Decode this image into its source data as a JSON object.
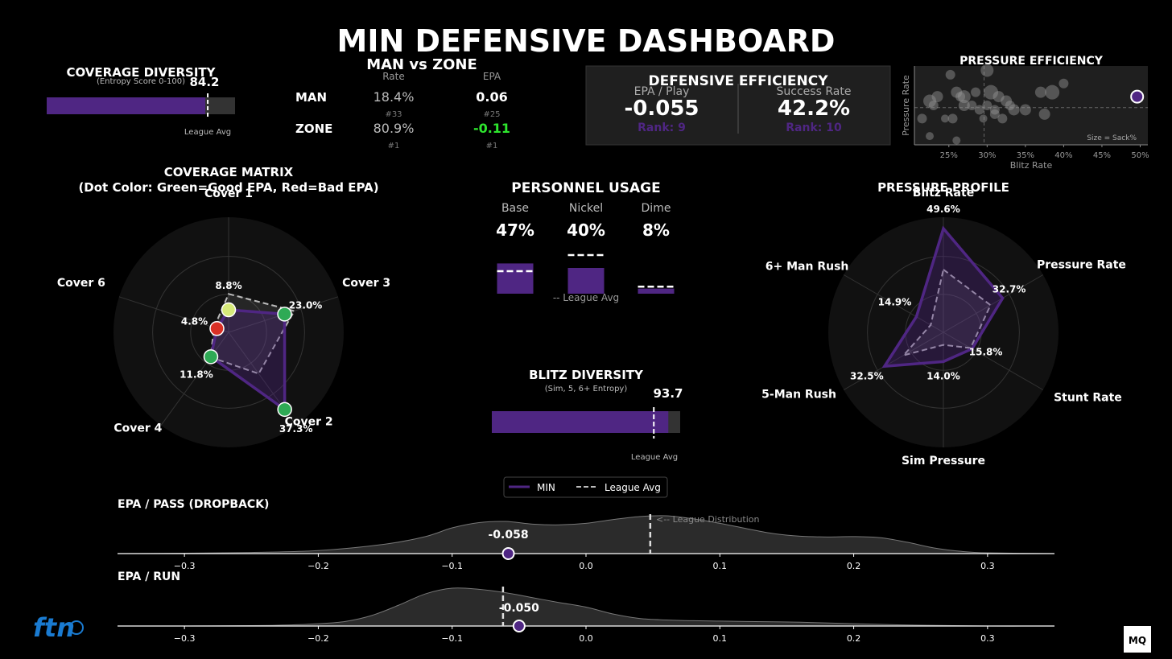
{
  "title": "MIN DEFENSIVE DASHBOARD",
  "coverage_diversity": {
    "title": "COVERAGE DIVERSITY",
    "subtitle": "(Entropy Score 0-100)",
    "value_label": "84.2",
    "value": 84.2,
    "league_avg": 85.5,
    "league_label": "League Avg"
  },
  "man_zone": {
    "title": "MAN vs ZONE",
    "col_rate": "Rate",
    "col_epa": "EPA",
    "rows": [
      {
        "label": "MAN",
        "rate": "18.4%",
        "rate_rank": "#33",
        "epa": "0.06",
        "epa_rank": "#25"
      },
      {
        "label": "ZONE",
        "rate": "80.9%",
        "rate_rank": "#1",
        "epa": "-0.11",
        "epa_rank": "#1"
      }
    ]
  },
  "defensive_efficiency": {
    "title": "DEFENSIVE EFFICIENCY",
    "epa_label": "EPA / Play",
    "epa_value": "-0.055",
    "epa_rank": "Rank: 9",
    "sr_label": "Success Rate",
    "sr_value": "42.2%",
    "sr_rank": "Rank: 10"
  },
  "coverage_matrix": {
    "title_line1": "COVERAGE MATRIX",
    "title_line2": "(Dot Color: Green=Good EPA, Red=Bad EPA)"
  },
  "personnel": {
    "title": "PERSONNEL USAGE",
    "legend": "-- League Avg",
    "items": [
      {
        "label": "Base",
        "value_label": "47%",
        "value": 47,
        "league": 35
      },
      {
        "label": "Nickel",
        "value_label": "40%",
        "value": 40,
        "league": 60
      },
      {
        "label": "Dime",
        "value_label": "8%",
        "value": 8,
        "league": 11
      }
    ]
  },
  "blitz_diversity": {
    "title": "BLITZ DIVERSITY",
    "subtitle": "(Sim, 5, 6+ Entropy)",
    "value_label": "93.7",
    "value": 93.7,
    "league_avg": 86,
    "league_label": "League Avg"
  },
  "pressure_profile": {
    "title": "PRESSURE PROFILE"
  },
  "legend": {
    "team": "MIN",
    "league": "League Avg"
  },
  "epa_pass": {
    "title": "EPA / PASS (DROPBACK)",
    "value_label": "-0.058",
    "value": -0.058,
    "league_mean": 0.048,
    "dist_label": "<-- League Distribution"
  },
  "epa_run": {
    "title": "EPA / RUN",
    "value_label": "-0.050",
    "value": -0.05,
    "league_mean": -0.062
  },
  "logos": {
    "left": "ftn",
    "right": "MQ"
  },
  "chart_data": [
    {
      "type": "radar",
      "name": "coverage_matrix",
      "axes": [
        "Cover 1",
        "Cover 3",
        "Cover 2",
        "Cover 4",
        "Cover 6"
      ],
      "values": [
        8.8,
        23.0,
        37.3,
        11.8,
        4.8
      ],
      "value_labels": [
        "8.8%",
        "23.0%",
        "37.3%",
        "11.8%",
        "4.8%"
      ],
      "league": [
        15.0,
        27.0,
        20.0,
        12.0,
        6.0
      ],
      "rmax": 45,
      "dot_epa": [
        "mid",
        "good",
        "good",
        "good",
        "bad"
      ],
      "dot_colors": [
        "#d6ea7a",
        "#2eaa55",
        "#2eaa55",
        "#2eaa55",
        "#d93025"
      ]
    },
    {
      "type": "radar",
      "name": "pressure_profile",
      "axes": [
        "Blitz Rate",
        "Pressure Rate",
        "Stunt Rate",
        "Sim Pressure",
        "5-Man Rush",
        "6+ Man Rush"
      ],
      "values": [
        49.6,
        32.7,
        15.8,
        14.0,
        32.5,
        14.9
      ],
      "value_labels": [
        "49.6%",
        "32.7%",
        "15.8%",
        "14.0%",
        "32.5%",
        "14.9%"
      ],
      "league": [
        30.0,
        26.0,
        15.0,
        6.0,
        22.0,
        7.0
      ],
      "rmax": 55
    },
    {
      "type": "scatter",
      "name": "pressure_efficiency",
      "title": "PRESSURE EFFICIENCY",
      "xlabel": "Blitz Rate",
      "ylabel": "Pressure Rate",
      "note": "Size = Sack%",
      "xticks": [
        "25%",
        "30%",
        "35%",
        "40%",
        "45%",
        "50%"
      ],
      "xtick_values": [
        25,
        30,
        35,
        40,
        45,
        50
      ],
      "xlim": [
        20.5,
        51
      ],
      "ylim": [
        22,
        40
      ],
      "xmean": 29.6,
      "ymean": 30.5,
      "highlight": {
        "x": 49.6,
        "y": 33
      },
      "points": [
        {
          "x": 25.2,
          "y": 38,
          "s": 6
        },
        {
          "x": 30.0,
          "y": 39,
          "s": 8
        },
        {
          "x": 22.5,
          "y": 32,
          "s": 8
        },
        {
          "x": 23.5,
          "y": 33,
          "s": 7
        },
        {
          "x": 26.0,
          "y": 34,
          "s": 7
        },
        {
          "x": 27.0,
          "y": 33,
          "s": 8
        },
        {
          "x": 28.5,
          "y": 34,
          "s": 6
        },
        {
          "x": 30.5,
          "y": 34,
          "s": 9
        },
        {
          "x": 31.5,
          "y": 33,
          "s": 7
        },
        {
          "x": 32.5,
          "y": 32,
          "s": 7
        },
        {
          "x": 29.0,
          "y": 30,
          "s": 6
        },
        {
          "x": 31.0,
          "y": 30,
          "s": 6
        },
        {
          "x": 33.5,
          "y": 30,
          "s": 7
        },
        {
          "x": 35.0,
          "y": 30,
          "s": 7
        },
        {
          "x": 37.5,
          "y": 29,
          "s": 7
        },
        {
          "x": 38.5,
          "y": 34,
          "s": 9
        },
        {
          "x": 40.0,
          "y": 36,
          "s": 6
        },
        {
          "x": 37.0,
          "y": 34,
          "s": 7
        },
        {
          "x": 21.5,
          "y": 28,
          "s": 6
        },
        {
          "x": 24.5,
          "y": 28,
          "s": 5
        },
        {
          "x": 25.5,
          "y": 28,
          "s": 6
        },
        {
          "x": 22.5,
          "y": 24,
          "s": 5
        },
        {
          "x": 26.0,
          "y": 23,
          "s": 5
        },
        {
          "x": 31.0,
          "y": 29,
          "s": 6
        },
        {
          "x": 30.0,
          "y": 31,
          "s": 6
        },
        {
          "x": 27.0,
          "y": 31,
          "s": 7
        },
        {
          "x": 32.0,
          "y": 28,
          "s": 6
        },
        {
          "x": 29.5,
          "y": 28,
          "s": 5
        },
        {
          "x": 33.0,
          "y": 31,
          "s": 6
        },
        {
          "x": 28.0,
          "y": 31,
          "s": 6
        },
        {
          "x": 23.0,
          "y": 31,
          "s": 6
        },
        {
          "x": 26.5,
          "y": 33,
          "s": 6
        }
      ]
    },
    {
      "type": "area",
      "name": "epa_pass_distribution",
      "xticks": [
        "−0.3",
        "−0.2",
        "−0.1",
        "0.0",
        "0.1",
        "0.2",
        "0.3"
      ],
      "xtick_values": [
        -0.3,
        -0.2,
        -0.1,
        0.0,
        0.1,
        0.2,
        0.3
      ],
      "xlim": [
        -0.35,
        0.35
      ],
      "x": [
        -0.35,
        -0.3,
        -0.25,
        -0.2,
        -0.15,
        -0.12,
        -0.1,
        -0.08,
        -0.06,
        -0.04,
        -0.02,
        0.0,
        0.02,
        0.04,
        0.06,
        0.08,
        0.1,
        0.12,
        0.14,
        0.16,
        0.18,
        0.2,
        0.22,
        0.24,
        0.26,
        0.28,
        0.3,
        0.35
      ],
      "y": [
        0.0,
        0.01,
        0.03,
        0.08,
        0.25,
        0.45,
        0.68,
        0.82,
        0.85,
        0.78,
        0.76,
        0.8,
        0.9,
        0.98,
        1.0,
        0.92,
        0.8,
        0.66,
        0.53,
        0.46,
        0.44,
        0.45,
        0.42,
        0.3,
        0.15,
        0.06,
        0.02,
        0.0
      ]
    },
    {
      "type": "area",
      "name": "epa_run_distribution",
      "xticks": [
        "−0.3",
        "−0.2",
        "−0.1",
        "0.0",
        "0.1",
        "0.2",
        "0.3"
      ],
      "xtick_values": [
        -0.3,
        -0.2,
        -0.1,
        0.0,
        0.1,
        0.2,
        0.3
      ],
      "xlim": [
        -0.35,
        0.35
      ],
      "x": [
        -0.35,
        -0.3,
        -0.25,
        -0.22,
        -0.2,
        -0.18,
        -0.16,
        -0.14,
        -0.12,
        -0.1,
        -0.08,
        -0.06,
        -0.04,
        -0.02,
        0.0,
        0.02,
        0.04,
        0.06,
        0.08,
        0.1,
        0.12,
        0.16,
        0.2,
        0.25,
        0.3,
        0.35
      ],
      "y": [
        0.0,
        0.0,
        0.01,
        0.03,
        0.06,
        0.12,
        0.28,
        0.55,
        0.85,
        1.0,
        0.97,
        0.88,
        0.75,
        0.62,
        0.5,
        0.32,
        0.2,
        0.16,
        0.14,
        0.13,
        0.12,
        0.1,
        0.06,
        0.02,
        0.0,
        0.0
      ]
    }
  ]
}
